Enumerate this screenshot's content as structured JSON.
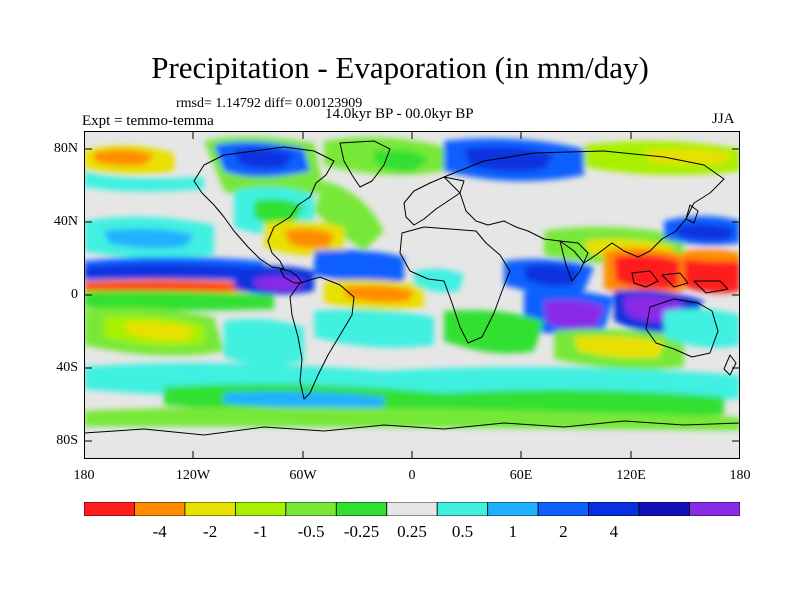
{
  "title": "Precipitation - Evaporation (in mm/day)",
  "stats": "rmsd= 1.14792 diff= 0.00123909",
  "experiment": "Expt = temmo-temma",
  "period": "14.0kyr BP - 00.0kyr BP",
  "season": "JJA",
  "lat_labels": [
    "80N",
    "40N",
    "0",
    "40S",
    "80S"
  ],
  "lon_labels": [
    "180",
    "120W",
    "60W",
    "0",
    "60E",
    "120E",
    "180"
  ],
  "colorbar": {
    "labels": [
      "-4",
      "-2",
      "-1",
      "-0.5",
      "-0.25",
      "0.25",
      "0.5",
      "1",
      "2",
      "4"
    ],
    "colors": [
      "#ff1e1e",
      "#ff8c00",
      "#e8e000",
      "#a8f000",
      "#78e838",
      "#30e030",
      "#e6e6e6",
      "#40f0e0",
      "#20b0ff",
      "#1060ff",
      "#0830e0",
      "#1010b8",
      "#8a2be8"
    ]
  }
}
